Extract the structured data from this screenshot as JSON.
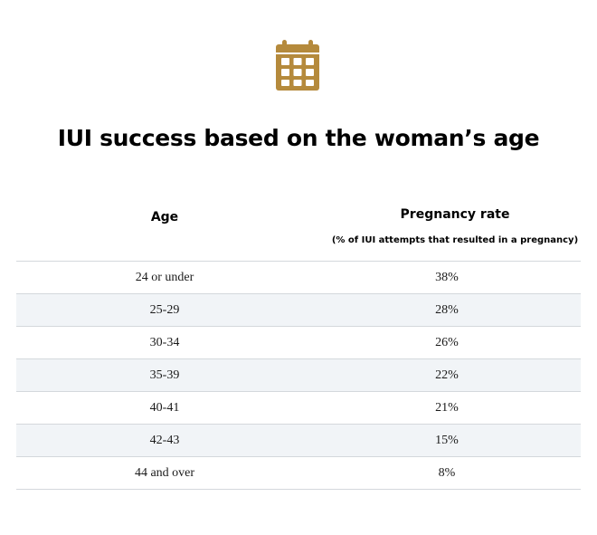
{
  "header": {
    "icon": "calendar-icon",
    "icon_color": "#b58a3c",
    "title": "IUI success based on the woman’s age"
  },
  "chart_data": {
    "type": "table",
    "columns": [
      {
        "label": "Age"
      },
      {
        "label": "Pregnancy rate",
        "sublabel": "(% of IUI attempts that resulted in a pregnancy)"
      }
    ],
    "rows": [
      {
        "age": "24 or under",
        "rate": "38%"
      },
      {
        "age": "25-29",
        "rate": "28%"
      },
      {
        "age": "30-34",
        "rate": "26%"
      },
      {
        "age": "35-39",
        "rate": "22%"
      },
      {
        "age": "40-41",
        "rate": "21%"
      },
      {
        "age": "42-43",
        "rate": "15%"
      },
      {
        "age": "44 and over",
        "rate": "8%"
      }
    ],
    "title": "IUI success based on the woman’s age",
    "striped_row_color": "#f1f4f7",
    "divider_color": "#d4d8dc"
  }
}
